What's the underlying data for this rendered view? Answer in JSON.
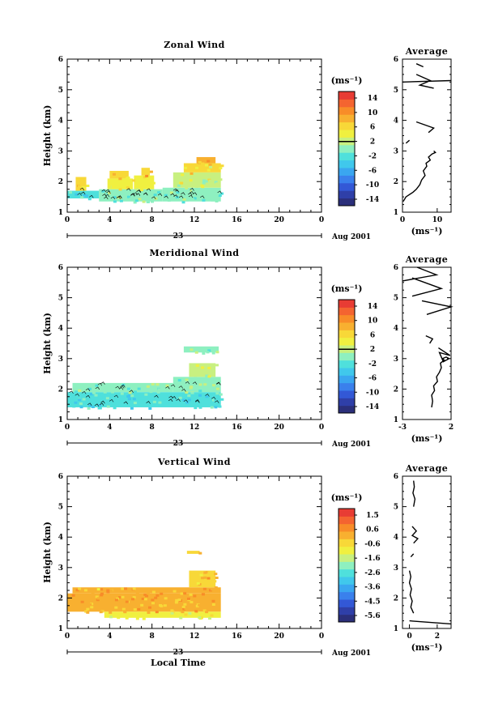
{
  "chart_data": [
    {
      "type": "heatmap",
      "title": "Zonal Wind",
      "xlabel": "",
      "ylabel": "Height (km)",
      "xlim": [
        0,
        24
      ],
      "ylim": [
        1,
        6
      ],
      "xticks": [
        "0",
        "4",
        "8",
        "12",
        "16",
        "20",
        "0"
      ],
      "yticks": [
        "1",
        "2",
        "3",
        "4",
        "5",
        "6"
      ],
      "date_day": "23",
      "date_label": "Aug 2001",
      "data_extent_hours": [
        0,
        14.5
      ],
      "colorbar": {
        "unit": "(ms⁻¹)",
        "ticks": [
          "14",
          "10",
          "6",
          "2",
          "-2",
          "-6",
          "-10",
          "-14"
        ],
        "range": [
          -16,
          16
        ],
        "zero_line": 2
      },
      "cells": [
        {
          "x0": 0,
          "x1": 3,
          "y0": 1.45,
          "y1": 1.7,
          "v": -2
        },
        {
          "x0": 0.8,
          "x1": 1.8,
          "y0": 1.7,
          "y1": 2.15,
          "v": 6
        },
        {
          "x0": 3,
          "x1": 6,
          "y0": 1.35,
          "y1": 1.75,
          "v": 0
        },
        {
          "x0": 3.8,
          "x1": 6.2,
          "y0": 1.75,
          "y1": 2.1,
          "v": 4
        },
        {
          "x0": 4,
          "x1": 5.8,
          "y0": 2.1,
          "y1": 2.35,
          "v": 7
        },
        {
          "x0": 6,
          "x1": 9,
          "y0": 1.35,
          "y1": 1.75,
          "v": 0
        },
        {
          "x0": 6.3,
          "x1": 8.2,
          "y0": 1.75,
          "y1": 2.2,
          "v": 4
        },
        {
          "x0": 7,
          "x1": 7.8,
          "y0": 2.2,
          "y1": 2.45,
          "v": 7
        },
        {
          "x0": 9,
          "x1": 14.5,
          "y0": 1.35,
          "y1": 1.8,
          "v": 0
        },
        {
          "x0": 10,
          "x1": 14.5,
          "y0": 1.8,
          "y1": 2.3,
          "v": 3
        },
        {
          "x0": 11,
          "x1": 14.5,
          "y0": 2.3,
          "y1": 2.6,
          "v": 6
        },
        {
          "x0": 12.2,
          "x1": 14,
          "y0": 2.6,
          "y1": 2.8,
          "v": 8
        }
      ],
      "profile": {
        "title": "Average",
        "xlabel": "(ms⁻¹)",
        "xlim": [
          0,
          14
        ],
        "ylim": [
          1,
          6
        ],
        "xticks": [
          "0",
          "10"
        ],
        "yticks": [
          "1",
          "2",
          "3",
          "4",
          "5",
          "6"
        ],
        "segments": [
          {
            "x": [
              0.2,
              1,
              3,
              4,
              5,
              5.5,
              6.5,
              6,
              7,
              6.8,
              8,
              7.5,
              8.5,
              9.5,
              9
            ],
            "y": [
              1.35,
              1.5,
              1.65,
              1.75,
              1.9,
              2.05,
              2.2,
              2.35,
              2.5,
              2.6,
              2.7,
              2.8,
              2.9,
              2.95,
              3.0
            ]
          },
          {
            "x": [
              1,
              2
            ],
            "y": [
              3.25,
              3.35
            ]
          },
          {
            "x": [
              4,
              9,
              7.5
            ],
            "y": [
              3.95,
              3.75,
              3.6
            ]
          },
          {
            "x": [
              0,
              14
            ],
            "y": [
              5.25,
              5.3
            ]
          },
          {
            "x": [
              4,
              6
            ],
            "y": [
              5.85,
              5.75
            ]
          },
          {
            "x": [
              4,
              8,
              5,
              9
            ],
            "y": [
              5.5,
              5.3,
              5.15,
              5.05
            ]
          }
        ]
      }
    },
    {
      "type": "heatmap",
      "title": "Meridional Wind",
      "xlabel": "",
      "ylabel": "Height (km)",
      "xlim": [
        0,
        24
      ],
      "ylim": [
        1,
        6
      ],
      "xticks": [
        "0",
        "4",
        "8",
        "12",
        "16",
        "20",
        "0"
      ],
      "yticks": [
        "1",
        "2",
        "3",
        "4",
        "5",
        "6"
      ],
      "date_day": "23",
      "date_label": "Aug 2001",
      "data_extent_hours": [
        0,
        14.5
      ],
      "colorbar": {
        "unit": "(ms⁻¹)",
        "ticks": [
          "14",
          "10",
          "6",
          "2",
          "-2",
          "-6",
          "-10",
          "-14"
        ],
        "range": [
          -16,
          16
        ],
        "zero_line": 2
      },
      "cells": [
        {
          "x0": 0,
          "x1": 14.5,
          "y0": 1.4,
          "y1": 1.9,
          "v": -2
        },
        {
          "x0": 0.5,
          "x1": 10,
          "y0": 1.9,
          "y1": 2.2,
          "v": 0
        },
        {
          "x0": 10,
          "x1": 14.5,
          "y0": 1.9,
          "y1": 2.4,
          "v": 1
        },
        {
          "x0": 11.5,
          "x1": 14,
          "y0": 2.4,
          "y1": 2.85,
          "v": 2
        },
        {
          "x0": 11,
          "x1": 14.3,
          "y0": 3.2,
          "y1": 3.4,
          "v": 0
        }
      ],
      "profile": {
        "title": "Average",
        "xlabel": "(ms⁻¹)",
        "xlim": [
          -3,
          2
        ],
        "ylim": [
          1,
          6
        ],
        "xticks": [
          "-3",
          "2"
        ],
        "yticks": [
          "1",
          "2",
          "3",
          "4",
          "5",
          "6"
        ],
        "segments": [
          {
            "x": [
              0,
              0.1,
              0,
              0.3,
              0.2,
              0.6,
              0.5,
              0.8,
              1.0,
              0.9,
              1.3,
              1.1,
              1.5,
              1.8,
              1.2,
              0.8,
              1.9,
              0.7
            ],
            "y": [
              1.4,
              1.6,
              1.8,
              1.95,
              2.1,
              2.25,
              2.4,
              2.55,
              2.7,
              2.85,
              2.95,
              3.0,
              3.05,
              3.0,
              2.9,
              3.2,
              3.1,
              3.35
            ]
          },
          {
            "x": [
              -0.6,
              0.1,
              -0.2
            ],
            "y": [
              3.75,
              3.65,
              3.5
            ]
          },
          {
            "x": [
              -1,
              2,
              -0.5
            ],
            "y": [
              4.9,
              4.7,
              4.45
            ]
          },
          {
            "x": [
              -2,
              1,
              -2
            ],
            "y": [
              5.65,
              5.3,
              5.05
            ]
          },
          {
            "x": [
              -1.5,
              0.5,
              -3
            ],
            "y": [
              6.0,
              5.75,
              5.55
            ]
          }
        ]
      }
    },
    {
      "type": "heatmap",
      "title": "Vertical Wind",
      "xlabel": "Local Time",
      "ylabel": "Height (km)",
      "xlim": [
        0,
        24
      ],
      "ylim": [
        1,
        6
      ],
      "xticks": [
        "0",
        "4",
        "8",
        "12",
        "16",
        "20",
        "0"
      ],
      "yticks": [
        "1",
        "2",
        "3",
        "4",
        "5",
        "6"
      ],
      "date_day": "23",
      "date_label": "Aug 2001",
      "data_extent_hours": [
        0,
        14.5
      ],
      "colorbar": {
        "unit": "(ms⁻¹)",
        "ticks": [
          "1.5",
          "0.6",
          "-0.6",
          "-1.6",
          "-2.6",
          "-3.6",
          "-4.5",
          "-5.6"
        ],
        "range": [
          -6,
          2
        ],
        "zero_line": null
      },
      "cells": [
        {
          "x0": 0,
          "x1": 14.5,
          "y0": 1.55,
          "y1": 2.15,
          "v": 0.2
        },
        {
          "x0": 0.5,
          "x1": 14.5,
          "y0": 2.15,
          "y1": 2.35,
          "v": 0.0
        },
        {
          "x0": 3.5,
          "x1": 14.5,
          "y0": 1.35,
          "y1": 1.55,
          "v": -0.9
        },
        {
          "x0": 11.5,
          "x1": 14,
          "y0": 2.35,
          "y1": 2.9,
          "v": -0.3
        },
        {
          "x0": 11.3,
          "x1": 12.5,
          "y0": 3.45,
          "y1": 3.55,
          "v": -0.5
        }
      ],
      "profile": {
        "title": "Average",
        "xlabel": "(ms⁻¹)",
        "xlim": [
          -0.5,
          3
        ],
        "ylim": [
          1,
          6
        ],
        "xticks": [
          "0",
          "2"
        ],
        "yticks": [
          "1",
          "2",
          "3",
          "4",
          "5",
          "6"
        ],
        "segments": [
          {
            "x": [
              0,
              3
            ],
            "y": [
              1.25,
              1.15
            ]
          },
          {
            "x": [
              0.3,
              0.1,
              0.2,
              0.05,
              0.15,
              0.0,
              0.1,
              0.0
            ],
            "y": [
              1.5,
              1.7,
              1.9,
              2.1,
              2.3,
              2.5,
              2.7,
              2.9
            ]
          },
          {
            "x": [
              0.1,
              0.3
            ],
            "y": [
              3.35,
              3.45
            ]
          },
          {
            "x": [
              0.3,
              0.6,
              0.2,
              0.5,
              0.2
            ],
            "y": [
              3.8,
              3.95,
              4.05,
              4.2,
              4.35
            ]
          },
          {
            "x": [
              0.3,
              0.4,
              0.25,
              0.35,
              0.3
            ],
            "y": [
              5.0,
              5.25,
              5.45,
              5.65,
              5.85
            ]
          }
        ]
      }
    }
  ]
}
